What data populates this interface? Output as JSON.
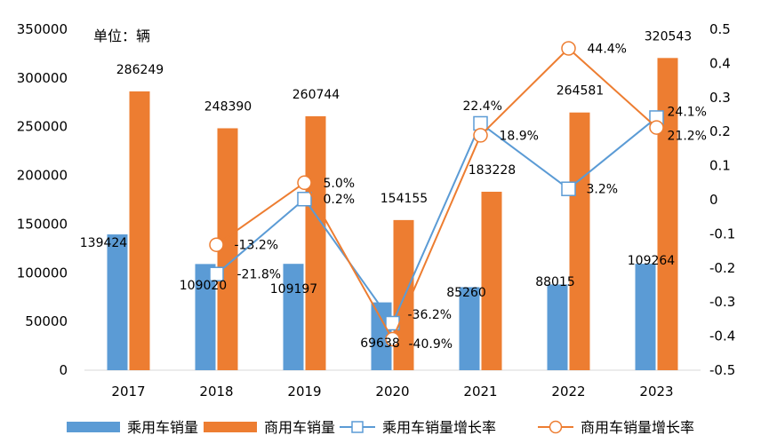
{
  "chart_data": {
    "type": "bar",
    "unit_label": "单位：辆",
    "categories": [
      "2017",
      "2018",
      "2019",
      "2020",
      "2021",
      "2022",
      "2023"
    ],
    "series": [
      {
        "name": "乘用车销量",
        "kind": "bar",
        "axis": "left",
        "color": "#5B9BD5",
        "values": [
          139424,
          109020,
          109197,
          69638,
          85260,
          88015,
          109264
        ],
        "labels": [
          "139424",
          "109020",
          "109197",
          "69638",
          "85260",
          "88015",
          "109264"
        ]
      },
      {
        "name": "商用车销量",
        "kind": "bar",
        "axis": "left",
        "color": "#ED7D31",
        "values": [
          286249,
          248390,
          260744,
          154155,
          183228,
          264581,
          320543
        ],
        "labels": [
          "286249",
          "248390",
          "260744",
          "154155",
          "183228",
          "264581",
          "320543"
        ]
      },
      {
        "name": "乘用车销量增长率",
        "kind": "line",
        "marker": "square",
        "axis": "right",
        "color": "#5B9BD5",
        "values": [
          null,
          -0.218,
          0.002,
          -0.362,
          0.224,
          0.032,
          0.241
        ],
        "labels": [
          null,
          "-21.8%",
          "0.2%",
          "-36.2%",
          "22.4%",
          "3.2%",
          "24.1%"
        ]
      },
      {
        "name": "商用车销量增长率",
        "kind": "line",
        "marker": "circle",
        "axis": "right",
        "color": "#ED7D31",
        "values": [
          null,
          -0.132,
          0.05,
          -0.409,
          0.189,
          0.444,
          0.212
        ],
        "labels": [
          null,
          "-13.2%",
          "5.0%",
          "-40.9%",
          "18.9%",
          "44.4%",
          "21.2%"
        ]
      }
    ],
    "y_left": {
      "min": 0,
      "max": 350000,
      "ticks": [
        "0",
        "50000",
        "100000",
        "150000",
        "200000",
        "250000",
        "300000",
        "350000"
      ]
    },
    "y_right": {
      "min": -0.5,
      "max": 0.5,
      "ticks": [
        "-0.5",
        "-0.4",
        "-0.3",
        "-0.2",
        "-0.1",
        "0",
        "0.1",
        "0.2",
        "0.3",
        "0.4",
        "0.5"
      ]
    },
    "grid": false,
    "legend_position": "bottom"
  }
}
